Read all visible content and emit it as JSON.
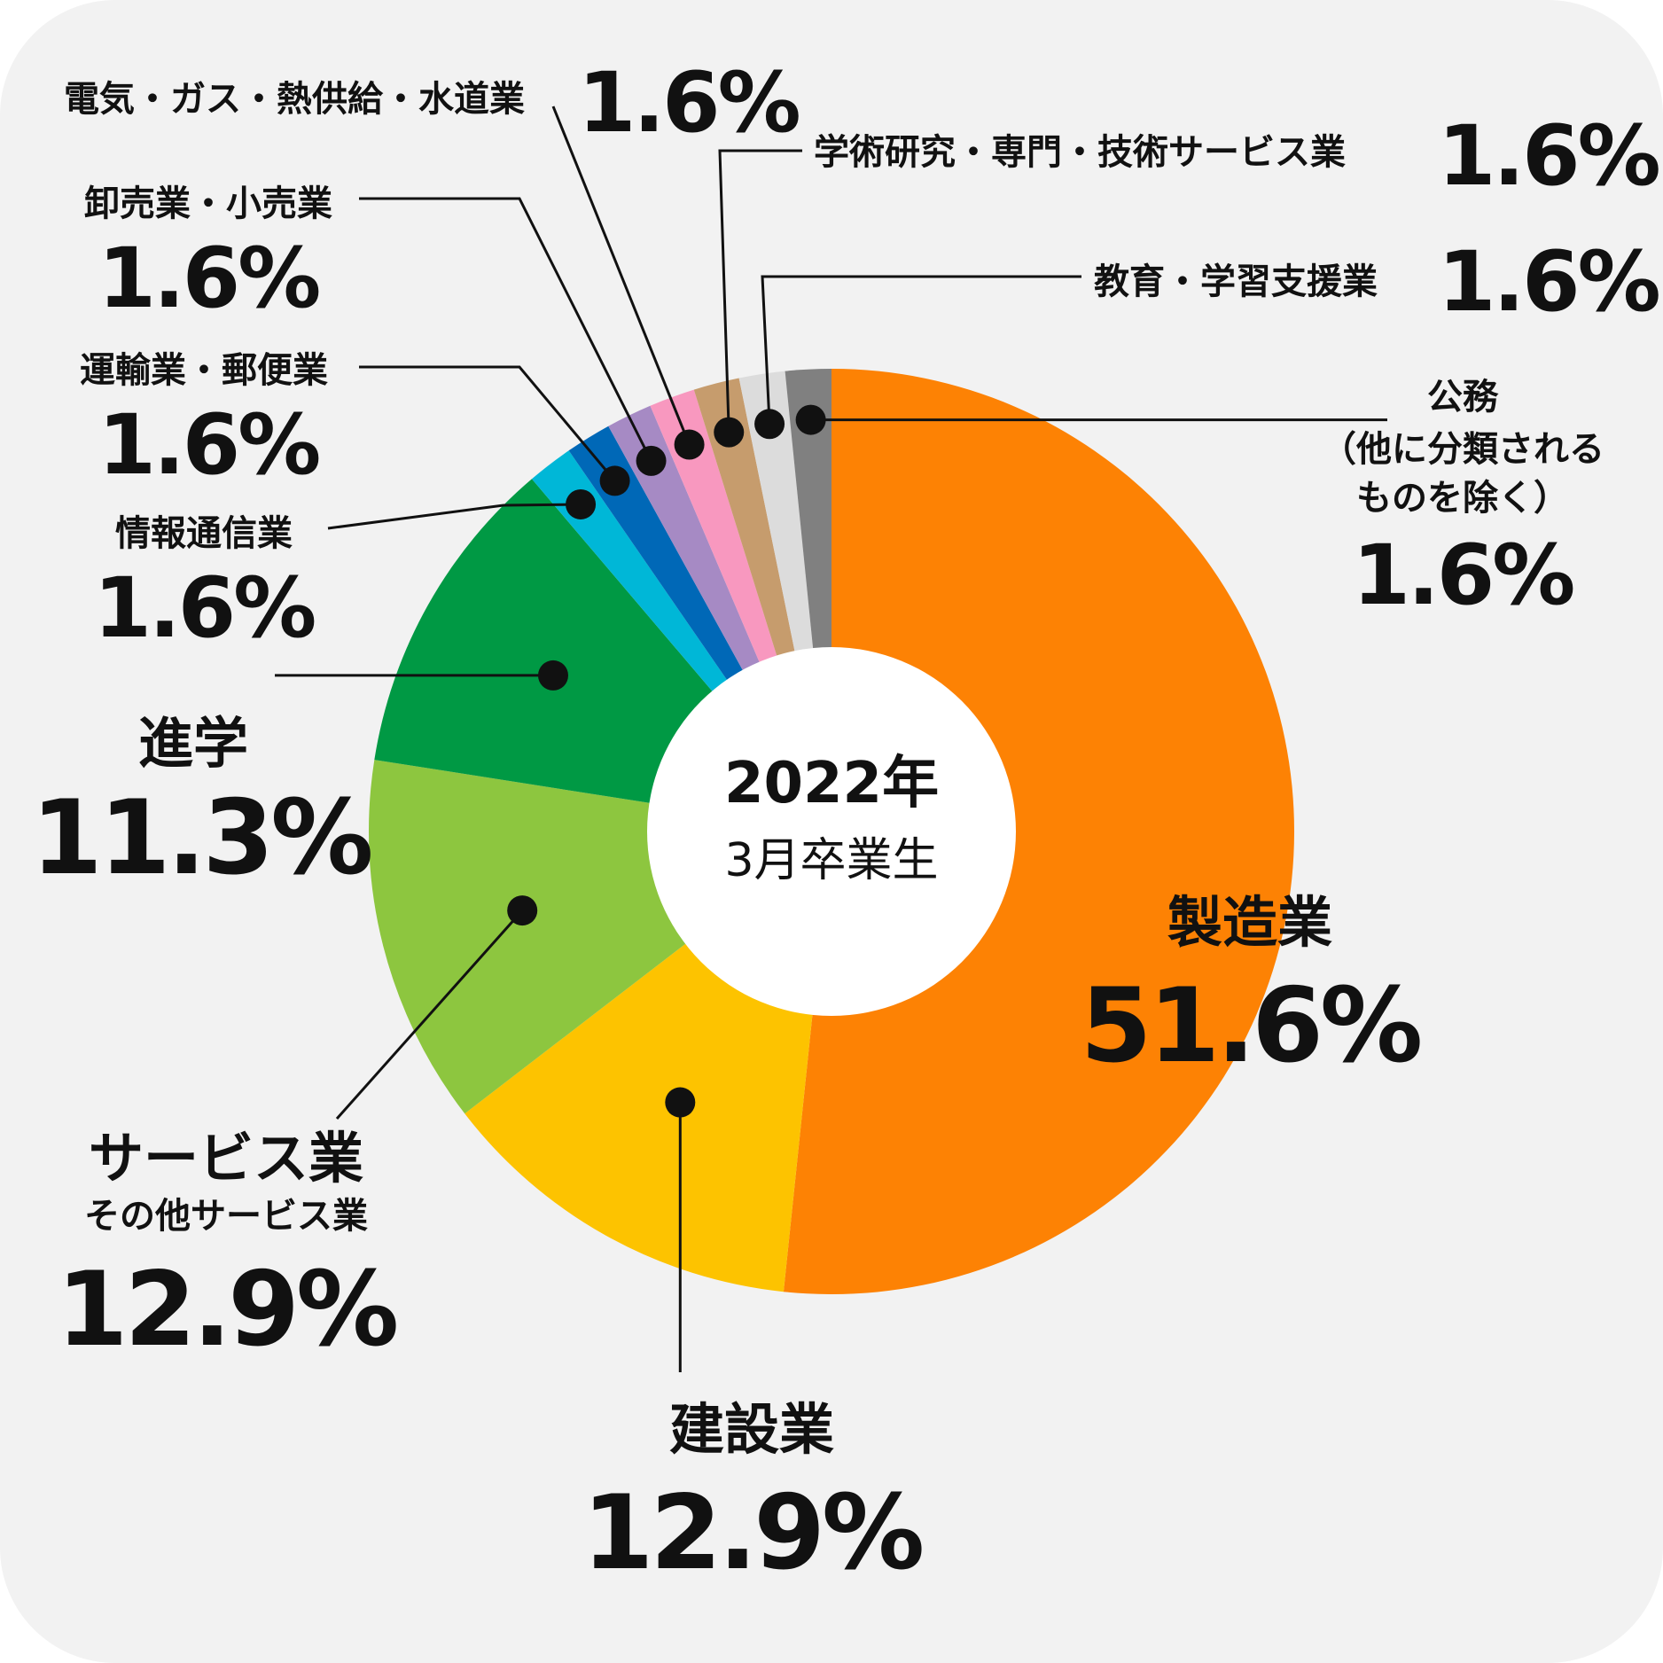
{
  "chart_data": {
    "type": "pie",
    "center_title": "2022年",
    "center_subtitle": "3月卒業生",
    "slices": [
      {
        "id": "manufacturing",
        "label": "製造業",
        "value": 51.6,
        "value_label": "51.6%",
        "color": "#fd8204"
      },
      {
        "id": "construction",
        "label": "建設業",
        "value": 12.9,
        "value_label": "12.9%",
        "color": "#fdc300"
      },
      {
        "id": "service",
        "label": "サービス業",
        "sublabel": "その他サービス業",
        "value": 12.9,
        "value_label": "12.9%",
        "color": "#8dc63f"
      },
      {
        "id": "further-study",
        "label": "進学",
        "value": 11.3,
        "value_label": "11.3%",
        "color": "#009944"
      },
      {
        "id": "info-comm",
        "label": "情報通信業",
        "value": 1.6,
        "value_label": "1.6%",
        "color": "#00b7d7"
      },
      {
        "id": "transport-postal",
        "label": "運輸業・郵便業",
        "value": 1.6,
        "value_label": "1.6%",
        "color": "#0068b7"
      },
      {
        "id": "wholesale-retail",
        "label": "卸売業・小売業",
        "value": 1.6,
        "value_label": "1.6%",
        "color": "#a68ac4"
      },
      {
        "id": "utilities",
        "label": "電気・ガス・熱供給・水道業",
        "value": 1.6,
        "value_label": "1.6%",
        "color": "#f898bf"
      },
      {
        "id": "academic-research",
        "label": "学術研究・専門・技術サービス業",
        "value": 1.6,
        "value_label": "1.6%",
        "color": "#c69c6d"
      },
      {
        "id": "education",
        "label": "教育・学習支援業",
        "value": 1.6,
        "value_label": "1.6%",
        "color": "#dcdcdc"
      },
      {
        "id": "public-service",
        "label": "公務",
        "sublabel": "（他に分類されるものを除く）",
        "value": 1.6,
        "value_label": "1.6%",
        "color": "#808080"
      }
    ]
  },
  "labels": {
    "public_line1": "公務",
    "public_line2": "（他に分類される",
    "public_line3": "ものを除く）"
  }
}
